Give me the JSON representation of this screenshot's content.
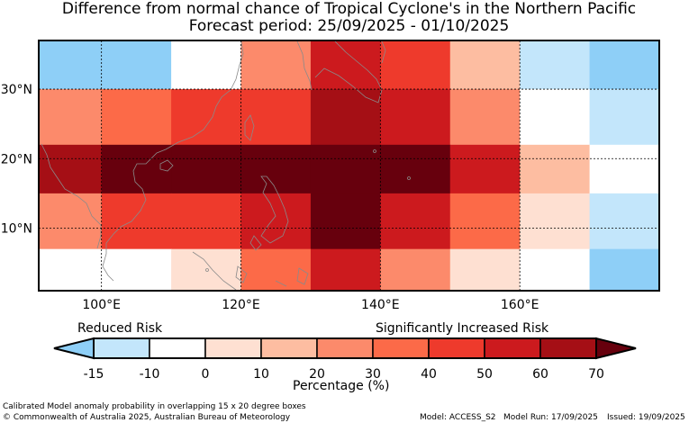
{
  "title": {
    "line1": "Difference from normal chance of Tropical Cyclone's in the Northern Pacific",
    "line2": "Forecast period: 25/09/2025 - 01/10/2025"
  },
  "map": {
    "lon_ticks": [
      "100°E",
      "120°E",
      "140°E",
      "160°E"
    ],
    "lat_ticks": [
      "30°N",
      "20°N",
      "10°N"
    ],
    "lon_range": [
      91,
      180
    ],
    "lat_range": [
      1,
      37
    ],
    "cell_grid": {
      "columns_lon_edges": [
        91,
        100,
        110,
        120,
        130,
        140,
        150,
        160,
        170,
        180
      ],
      "rows": [
        {
          "lat_from": 30,
          "lat_to": 37,
          "colors": [
            "#8ecff7",
            "#8ecff7",
            "#ffffff",
            "#fc8a6b",
            "#cc1a1e",
            "#ee3a2c",
            "#fdbda1",
            "#c3e6fb",
            "#8ecff7"
          ]
        },
        {
          "lat_from": 22,
          "lat_to": 30,
          "colors": [
            "#fc8a6b",
            "#fc6a48",
            "#ee3a2c",
            "#ee3a2c",
            "#a50f15",
            "#cc1a1e",
            "#fc8a6b",
            "#ffffff",
            "#c3e6fb"
          ]
        },
        {
          "lat_from": 15,
          "lat_to": 22,
          "colors": [
            "#a50f15",
            "#67000d",
            "#67000d",
            "#67000d",
            "#67000d",
            "#67000d",
            "#cc1a1e",
            "#fdbda1",
            "#ffffff"
          ]
        },
        {
          "lat_from": 7,
          "lat_to": 15,
          "colors": [
            "#fc8a6b",
            "#ee3a2c",
            "#ee3a2c",
            "#cc1a1e",
            "#67000d",
            "#cc1a1e",
            "#fc6a48",
            "#fee0d2",
            "#c3e6fb"
          ]
        },
        {
          "lat_from": 1,
          "lat_to": 7,
          "colors": [
            "#ffffff",
            "#ffffff",
            "#fee0d2",
            "#fc6a48",
            "#cc1a1e",
            "#fc8a6b",
            "#fee0d2",
            "#ffffff",
            "#8ecff7"
          ]
        }
      ]
    }
  },
  "colorbar": {
    "reduced_label": "Reduced Risk",
    "increased_label": "Significantly Increased Risk",
    "axis_label": "Percentage (%)",
    "ticks": [
      "-15",
      "-10",
      "0",
      "10",
      "20",
      "30",
      "40",
      "50",
      "60",
      "70"
    ],
    "bin_colors": [
      "#c3e6fb",
      "#ffffff",
      "#fee0d2",
      "#fdbda1",
      "#fc8a6b",
      "#fc6a48",
      "#ee3a2c",
      "#cc1a1e",
      "#a50f15"
    ],
    "under_color": "#8ecff7",
    "over_color": "#67000d"
  },
  "footer": {
    "note": "Calibrated Model anomaly probability in overlapping 15 x 20 degree boxes",
    "copyright": "© Commonwealth of Australia 2025, Australian Bureau of Meteorology",
    "model": "Model: ACCESS_S2",
    "run": "Model Run: 17/09/2025",
    "issued": "Issued: 19/09/2025"
  }
}
